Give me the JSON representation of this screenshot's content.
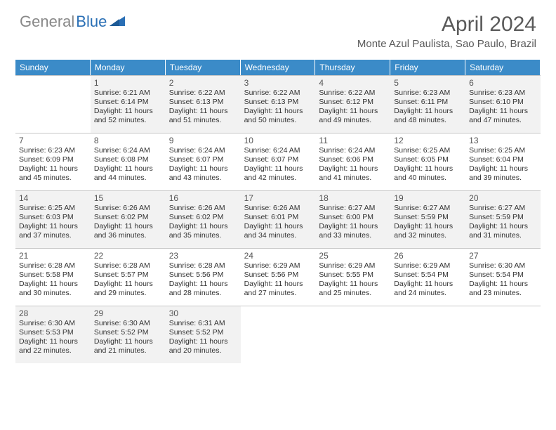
{
  "logo": {
    "textGray": "General",
    "textBlue": "Blue"
  },
  "title": "April 2024",
  "location": "Monte Azul Paulista, Sao Paulo, Brazil",
  "colors": {
    "headerBg": "#3b8bc8",
    "headerText": "#ffffff",
    "logoGray": "#888888",
    "logoBlue": "#2a6fb5",
    "titleColor": "#5a5a5a",
    "cellBorder": "#c8c8c8",
    "shadedBg": "#f2f2f2",
    "textColor": "#333333"
  },
  "typography": {
    "titleFontSize": 30,
    "locationFontSize": 15,
    "dayHeaderFontSize": 12,
    "dayNumFontSize": 12,
    "infoFontSize": 10.5
  },
  "dayHeaders": [
    "Sunday",
    "Monday",
    "Tuesday",
    "Wednesday",
    "Thursday",
    "Friday",
    "Saturday"
  ],
  "layout": {
    "columns": 7,
    "rows": 5,
    "firstDayOffset": 1,
    "daysInMonth": 30,
    "shadedRows": [
      0,
      2,
      4
    ]
  },
  "days": [
    {
      "n": 1,
      "sunrise": "6:21 AM",
      "sunset": "6:14 PM",
      "dh": 11,
      "dm": 52
    },
    {
      "n": 2,
      "sunrise": "6:22 AM",
      "sunset": "6:13 PM",
      "dh": 11,
      "dm": 51
    },
    {
      "n": 3,
      "sunrise": "6:22 AM",
      "sunset": "6:13 PM",
      "dh": 11,
      "dm": 50
    },
    {
      "n": 4,
      "sunrise": "6:22 AM",
      "sunset": "6:12 PM",
      "dh": 11,
      "dm": 49
    },
    {
      "n": 5,
      "sunrise": "6:23 AM",
      "sunset": "6:11 PM",
      "dh": 11,
      "dm": 48
    },
    {
      "n": 6,
      "sunrise": "6:23 AM",
      "sunset": "6:10 PM",
      "dh": 11,
      "dm": 47
    },
    {
      "n": 7,
      "sunrise": "6:23 AM",
      "sunset": "6:09 PM",
      "dh": 11,
      "dm": 45
    },
    {
      "n": 8,
      "sunrise": "6:24 AM",
      "sunset": "6:08 PM",
      "dh": 11,
      "dm": 44
    },
    {
      "n": 9,
      "sunrise": "6:24 AM",
      "sunset": "6:07 PM",
      "dh": 11,
      "dm": 43
    },
    {
      "n": 10,
      "sunrise": "6:24 AM",
      "sunset": "6:07 PM",
      "dh": 11,
      "dm": 42
    },
    {
      "n": 11,
      "sunrise": "6:24 AM",
      "sunset": "6:06 PM",
      "dh": 11,
      "dm": 41
    },
    {
      "n": 12,
      "sunrise": "6:25 AM",
      "sunset": "6:05 PM",
      "dh": 11,
      "dm": 40
    },
    {
      "n": 13,
      "sunrise": "6:25 AM",
      "sunset": "6:04 PM",
      "dh": 11,
      "dm": 39
    },
    {
      "n": 14,
      "sunrise": "6:25 AM",
      "sunset": "6:03 PM",
      "dh": 11,
      "dm": 37
    },
    {
      "n": 15,
      "sunrise": "6:26 AM",
      "sunset": "6:02 PM",
      "dh": 11,
      "dm": 36
    },
    {
      "n": 16,
      "sunrise": "6:26 AM",
      "sunset": "6:02 PM",
      "dh": 11,
      "dm": 35
    },
    {
      "n": 17,
      "sunrise": "6:26 AM",
      "sunset": "6:01 PM",
      "dh": 11,
      "dm": 34
    },
    {
      "n": 18,
      "sunrise": "6:27 AM",
      "sunset": "6:00 PM",
      "dh": 11,
      "dm": 33
    },
    {
      "n": 19,
      "sunrise": "6:27 AM",
      "sunset": "5:59 PM",
      "dh": 11,
      "dm": 32
    },
    {
      "n": 20,
      "sunrise": "6:27 AM",
      "sunset": "5:59 PM",
      "dh": 11,
      "dm": 31
    },
    {
      "n": 21,
      "sunrise": "6:28 AM",
      "sunset": "5:58 PM",
      "dh": 11,
      "dm": 30
    },
    {
      "n": 22,
      "sunrise": "6:28 AM",
      "sunset": "5:57 PM",
      "dh": 11,
      "dm": 29
    },
    {
      "n": 23,
      "sunrise": "6:28 AM",
      "sunset": "5:56 PM",
      "dh": 11,
      "dm": 28
    },
    {
      "n": 24,
      "sunrise": "6:29 AM",
      "sunset": "5:56 PM",
      "dh": 11,
      "dm": 27
    },
    {
      "n": 25,
      "sunrise": "6:29 AM",
      "sunset": "5:55 PM",
      "dh": 11,
      "dm": 25
    },
    {
      "n": 26,
      "sunrise": "6:29 AM",
      "sunset": "5:54 PM",
      "dh": 11,
      "dm": 24
    },
    {
      "n": 27,
      "sunrise": "6:30 AM",
      "sunset": "5:54 PM",
      "dh": 11,
      "dm": 23
    },
    {
      "n": 28,
      "sunrise": "6:30 AM",
      "sunset": "5:53 PM",
      "dh": 11,
      "dm": 22
    },
    {
      "n": 29,
      "sunrise": "6:30 AM",
      "sunset": "5:52 PM",
      "dh": 11,
      "dm": 21
    },
    {
      "n": 30,
      "sunrise": "6:31 AM",
      "sunset": "5:52 PM",
      "dh": 11,
      "dm": 20
    }
  ],
  "labels": {
    "sunrise": "Sunrise:",
    "sunset": "Sunset:",
    "daylightPrefix": "Daylight:",
    "hoursWord": "hours",
    "andWord": "and",
    "minutesWord": "minutes."
  }
}
